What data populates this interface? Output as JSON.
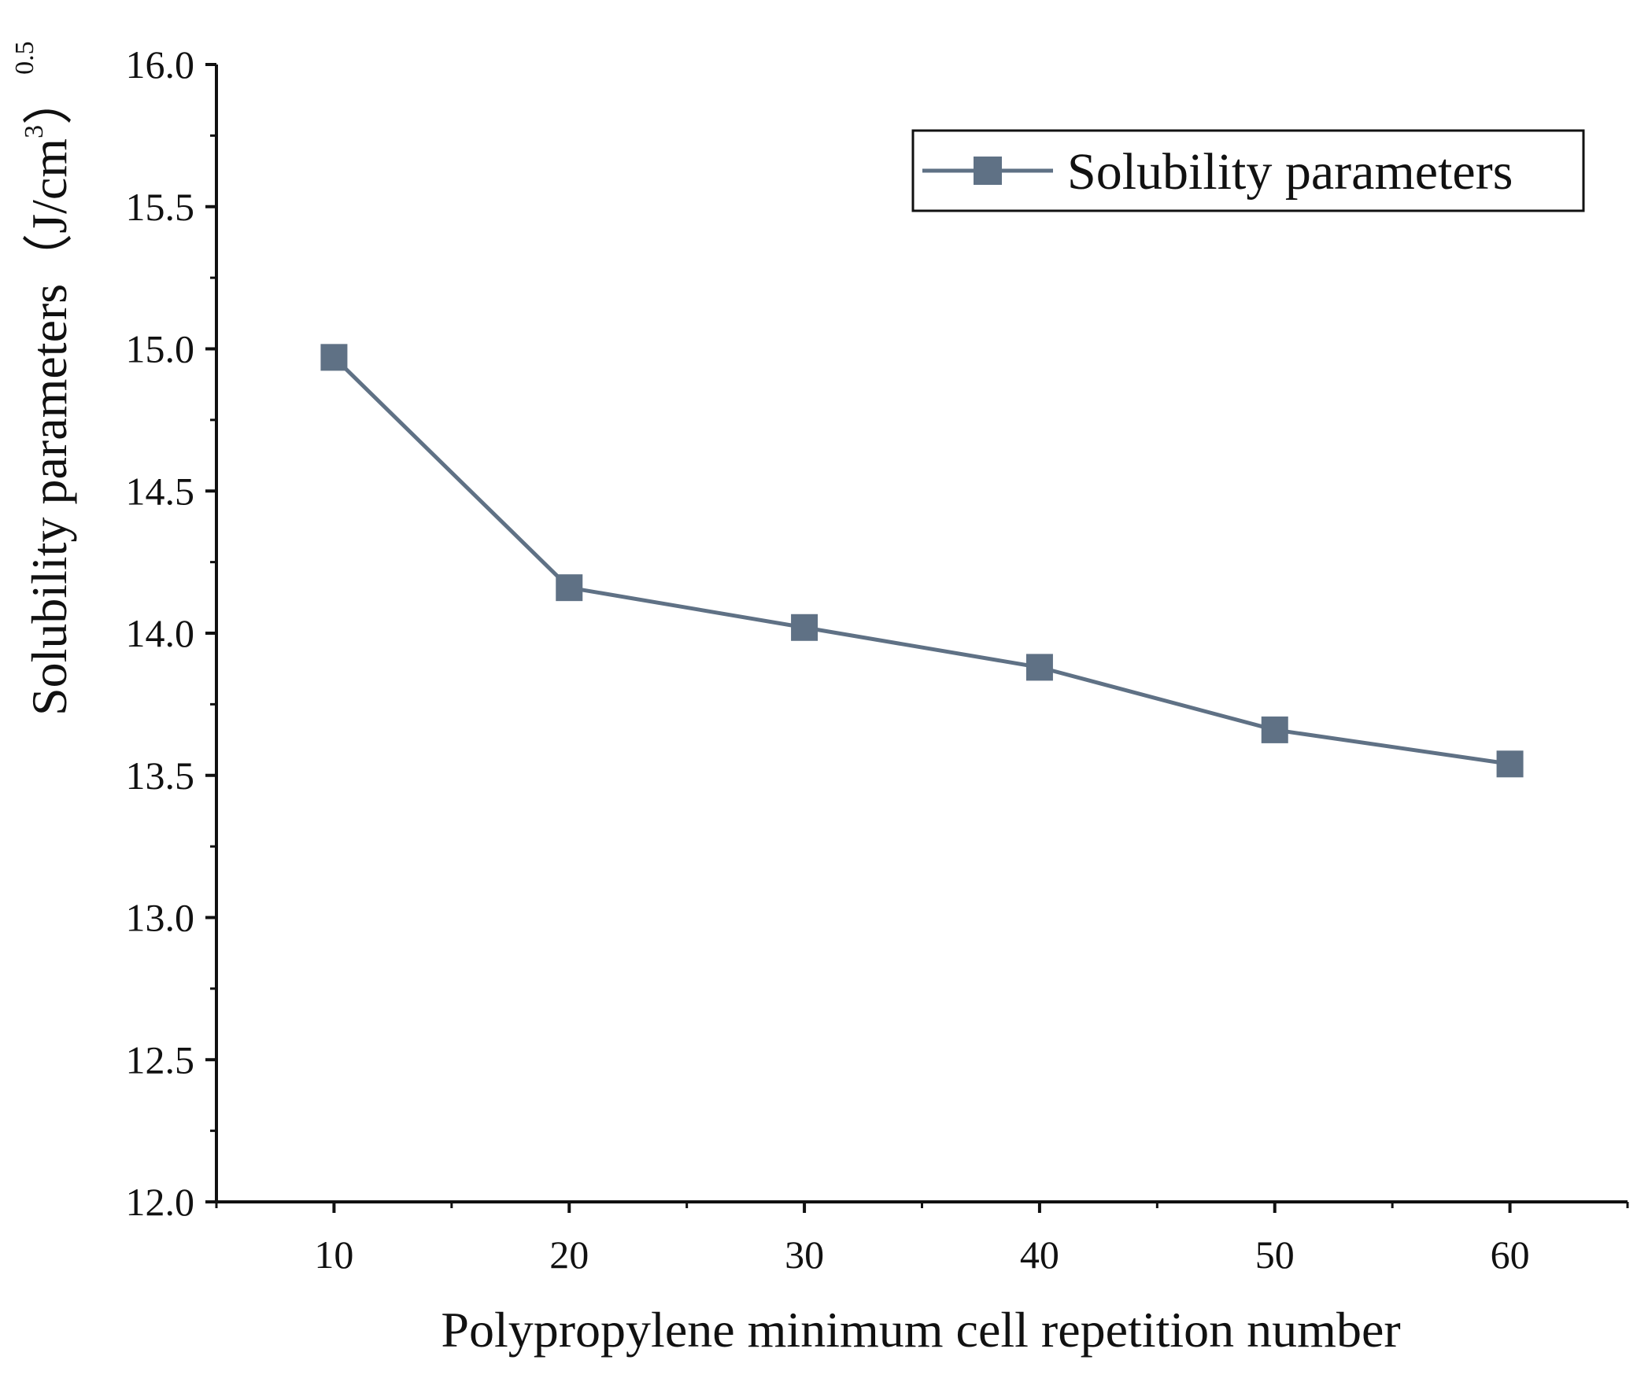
{
  "chart_data": {
    "type": "line",
    "title": "",
    "xlabel": "Polypropylene minimum cell repetition number",
    "ylabel": {
      "main": "Solubility parameters（J/cm",
      "cube": "3",
      "close": "）",
      "exponent": "0.5"
    },
    "x": [
      10,
      20,
      30,
      40,
      50,
      60
    ],
    "xlim": [
      5,
      65
    ],
    "ylim": [
      12.0,
      16.0
    ],
    "x_ticks": [
      10,
      20,
      30,
      40,
      50,
      60
    ],
    "x_tick_labels": [
      "10",
      "20",
      "30",
      "40",
      "50",
      "60"
    ],
    "y_ticks": [
      12.0,
      12.5,
      13.0,
      13.5,
      14.0,
      14.5,
      15.0,
      15.5,
      16.0
    ],
    "y_tick_labels": [
      "12.0",
      "12.5",
      "13.0",
      "13.5",
      "14.0",
      "14.5",
      "15.0",
      "15.5",
      "16.0"
    ],
    "grid": false,
    "legend_position": "top-right",
    "series": [
      {
        "name": "Solubility parameters",
        "values": [
          14.97,
          14.16,
          14.02,
          13.88,
          13.66,
          13.54
        ],
        "color": "#5f7185",
        "marker": "square"
      }
    ]
  }
}
